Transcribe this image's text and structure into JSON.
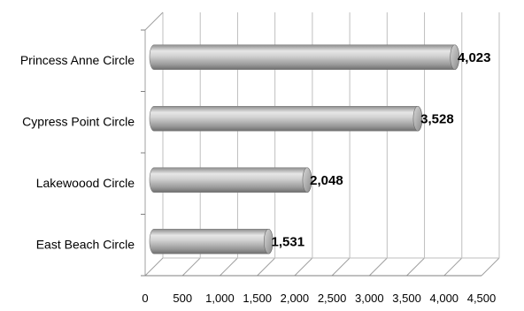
{
  "chart_data": {
    "type": "bar",
    "orientation": "horizontal",
    "style": "3d-cylinder",
    "categories": [
      "Princess Anne Circle",
      "Cypress Point Circle",
      "Lakewoood Circle",
      "East Beach Circle"
    ],
    "values": [
      4023,
      3528,
      2048,
      1531
    ],
    "data_labels": [
      "4,023",
      "3,528",
      "2,048",
      "1,531"
    ],
    "xlim": [
      0,
      4500
    ],
    "x_ticks": [
      0,
      500,
      1000,
      1500,
      2000,
      2500,
      3000,
      3500,
      4000,
      4500
    ],
    "x_tick_labels": [
      "0",
      "500",
      "1,000",
      "1,500",
      "2,000",
      "2,500",
      "3,000",
      "3,500",
      "4,000",
      "4,500"
    ],
    "grid": true,
    "legend": "none",
    "bar_color": "#a6a6a6",
    "title": "",
    "xlabel": "",
    "ylabel": ""
  }
}
